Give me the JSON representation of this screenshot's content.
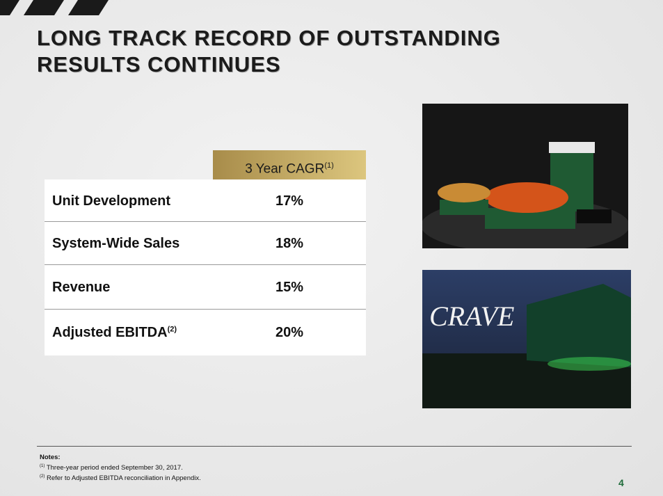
{
  "header": {
    "title_lines": [
      "LONG TRACK RECORD OF OUTSTANDING",
      "RESULTS CONTINUES"
    ]
  },
  "table": {
    "column_header": {
      "text": "3 Year CAGR",
      "note": "(1)"
    },
    "rows": [
      {
        "label": "Unit Development",
        "value": "17%"
      },
      {
        "label": "System-Wide Sales",
        "value": "18%"
      },
      {
        "label": "Revenue",
        "value": "15%"
      },
      {
        "label": "Adjusted EBITDA",
        "note": "(2)",
        "value": "20%"
      }
    ]
  },
  "images": [
    {
      "alt": "wings meal"
    },
    {
      "alt": "food truck",
      "light_writing": "CRAVE"
    }
  ],
  "notes": {
    "heading": "Notes:",
    "items": [
      {
        "marker": "(1)",
        "text": "Three-year period ended September 30, 2017."
      },
      {
        "marker": "(2)",
        "text": "Refer to Adjusted EBITDA reconciliation in Appendix."
      }
    ]
  },
  "page_number": "4"
}
